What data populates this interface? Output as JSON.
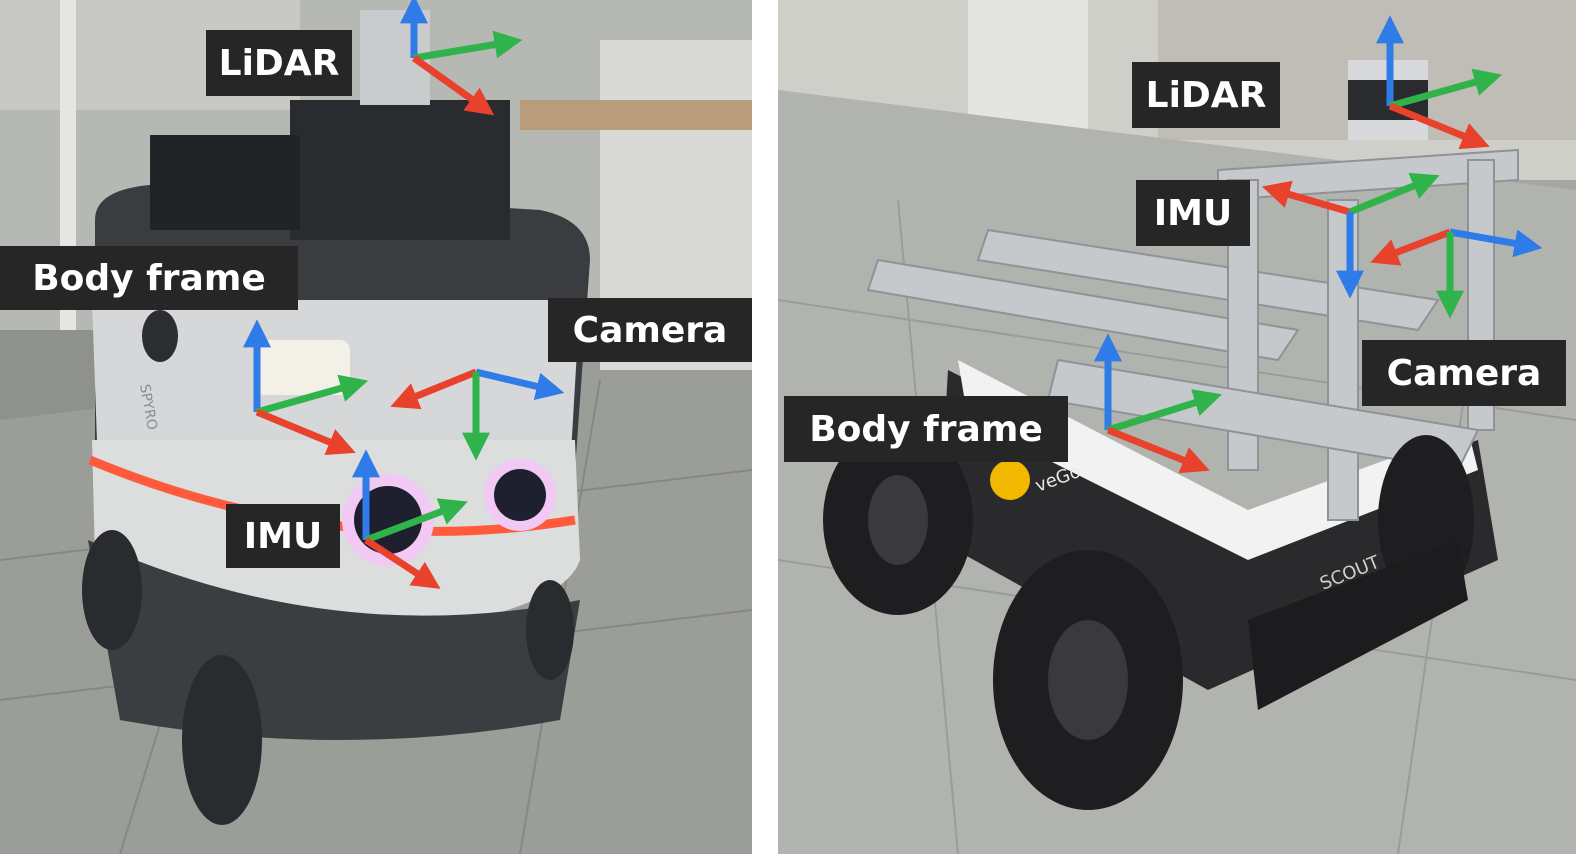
{
  "colors": {
    "axis_x": "#e8412c",
    "axis_y": "#2fb34a",
    "axis_z": "#2f7be8",
    "label_bg": "#262626",
    "label_text": "#ffffff"
  },
  "left_panel": {
    "labels": {
      "lidar": "LiDAR",
      "body_frame": "Body frame",
      "camera": "Camera",
      "imu": "IMU"
    },
    "robot_text": "SPYRO"
  },
  "right_panel": {
    "labels": {
      "lidar": "LiDAR",
      "imu": "IMU",
      "camera": "Camera",
      "body_frame": "Body frame"
    },
    "robot_text_1": "SCOUT",
    "robot_text_2": "veGo"
  }
}
